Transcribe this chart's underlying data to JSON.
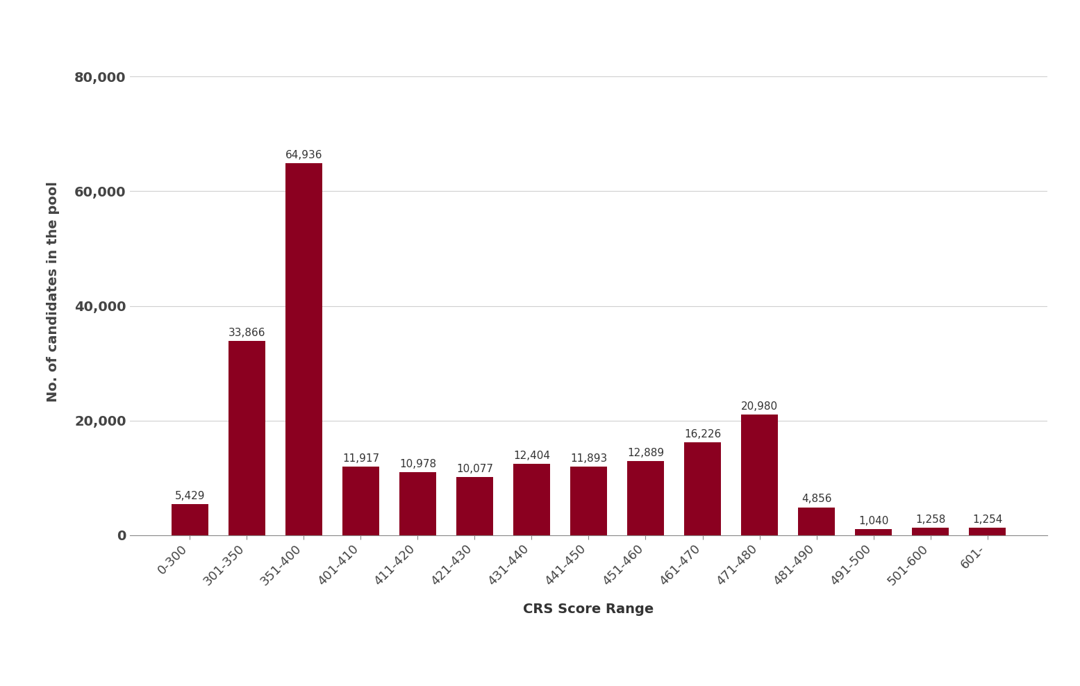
{
  "categories": [
    "0-300",
    "301-350",
    "351-400",
    "401-410",
    "411-420",
    "421-430",
    "431-440",
    "441-450",
    "451-460",
    "461-470",
    "471-480",
    "481-490",
    "491-500",
    "501-600",
    "601-"
  ],
  "values": [
    5429,
    33866,
    64936,
    11917,
    10978,
    10077,
    12404,
    11893,
    12889,
    16226,
    20980,
    4856,
    1040,
    1258,
    1254
  ],
  "bar_color": "#8B0020",
  "xlabel": "CRS Score Range",
  "ylabel": "No. of candidates in the pool",
  "ylim": [
    0,
    85000
  ],
  "yticks": [
    0,
    20000,
    40000,
    60000,
    80000
  ],
  "ytick_labels": [
    "0",
    "20,000",
    "40,000",
    "60,000",
    "80,000"
  ],
  "value_labels": [
    "5,429",
    "33,866",
    "64,936",
    "11,917",
    "10,978",
    "10,077",
    "12,404",
    "11,893",
    "12,889",
    "16,226",
    "20,980",
    "4,856",
    "1,040",
    "1,258",
    "1,254"
  ],
  "background_color": "#ffffff",
  "grid_color": "#d0d0d0",
  "label_fontsize": 14,
  "tick_fontsize": 13,
  "value_fontsize": 11,
  "ytick_fontsize": 14
}
